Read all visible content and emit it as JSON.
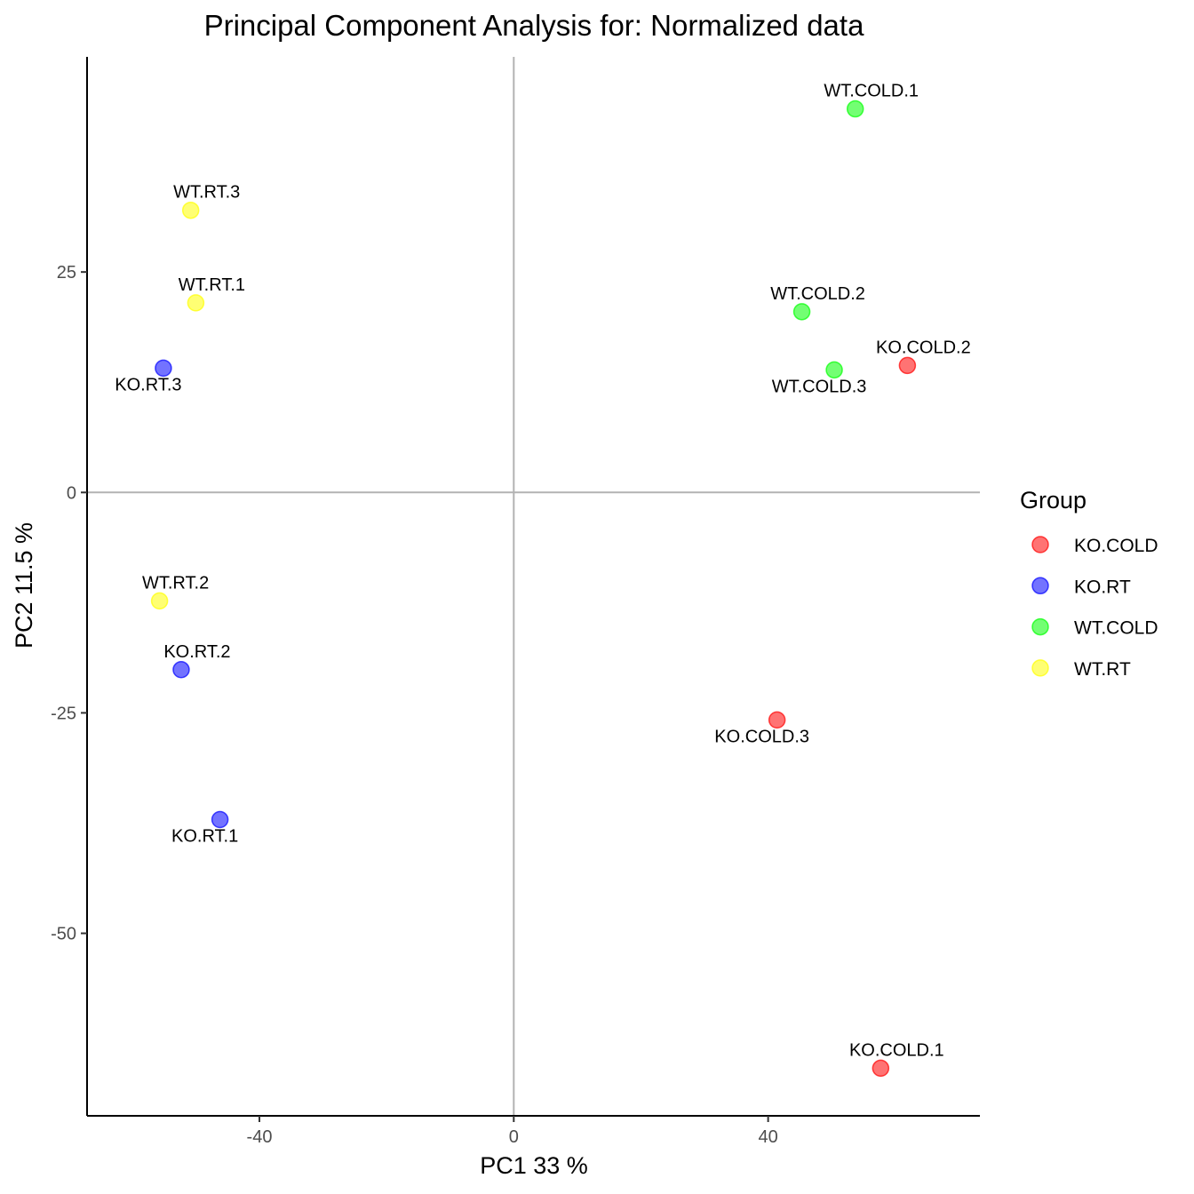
{
  "chart_data": {
    "type": "scatter",
    "title": "Principal Component Analysis for:  Normalized data",
    "xlabel": "PC1 33 %",
    "ylabel": "PC2 11.5 %",
    "xlim": [
      -67.1,
      73.3
    ],
    "ylim": [
      -70.7,
      49.4
    ],
    "xticks": [
      -40,
      0,
      40
    ],
    "xtick_labels": [
      "-40",
      "0",
      "40"
    ],
    "yticks": [
      -50,
      -25,
      0,
      25
    ],
    "ytick_labels": [
      "-50",
      "-25",
      "0",
      "25"
    ],
    "reference_lines": {
      "x": 0,
      "y": 0
    },
    "grid": false,
    "legend": {
      "title": "Group",
      "position": "right",
      "entries": [
        {
          "name": "KO.COLD",
          "color": "#FF0000"
        },
        {
          "name": "KO.RT",
          "color": "#0000FF"
        },
        {
          "name": "WT.COLD",
          "color": "#00FF00"
        },
        {
          "name": "WT.RT",
          "color": "#FFFF00"
        }
      ]
    },
    "points": [
      {
        "label": "WT.COLD.1",
        "group": "WT.COLD",
        "x": 53.7,
        "y": 43.5,
        "label_pos": "above"
      },
      {
        "label": "WT.RT.3",
        "group": "WT.RT",
        "x": -50.8,
        "y": 32.0,
        "label_pos": "above"
      },
      {
        "label": "WT.RT.1",
        "group": "WT.RT",
        "x": -50.0,
        "y": 21.5,
        "label_pos": "above"
      },
      {
        "label": "WT.COLD.2",
        "group": "WT.COLD",
        "x": 45.3,
        "y": 20.5,
        "label_pos": "above"
      },
      {
        "label": "KO.COLD.2",
        "group": "KO.COLD",
        "x": 61.9,
        "y": 14.4,
        "label_pos": "above"
      },
      {
        "label": "WT.COLD.3",
        "group": "WT.COLD",
        "x": 50.4,
        "y": 13.9,
        "label_pos": "below"
      },
      {
        "label": "KO.RT.3",
        "group": "KO.RT",
        "x": -55.1,
        "y": 14.1,
        "label_pos": "below"
      },
      {
        "label": "WT.RT.2",
        "group": "WT.RT",
        "x": -55.7,
        "y": -12.3,
        "label_pos": "above"
      },
      {
        "label": "KO.RT.2",
        "group": "KO.RT",
        "x": -52.3,
        "y": -20.1,
        "label_pos": "above"
      },
      {
        "label": "KO.COLD.3",
        "group": "KO.COLD",
        "x": 41.4,
        "y": -25.8,
        "label_pos": "below"
      },
      {
        "label": "KO.RT.1",
        "group": "KO.RT",
        "x": -46.2,
        "y": -37.1,
        "label_pos": "below"
      },
      {
        "label": "KO.COLD.1",
        "group": "KO.COLD",
        "x": 57.7,
        "y": -65.3,
        "label_pos": "above"
      }
    ]
  }
}
